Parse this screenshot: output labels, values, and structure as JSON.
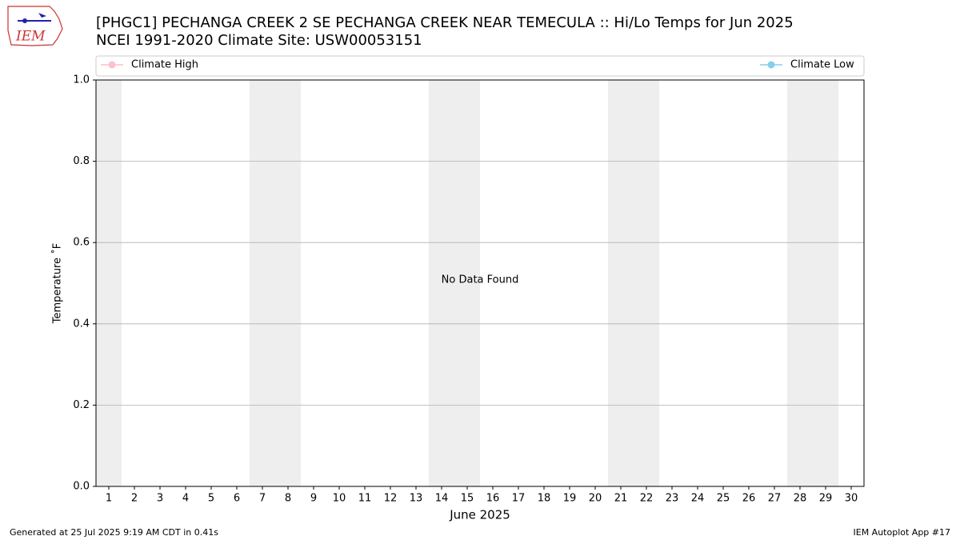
{
  "chart_data": {
    "type": "line",
    "title": "[PHGC1] PECHANGA CREEK 2 SE PECHANGA CREEK NEAR TEMECULA :: Hi/Lo Temps for Jun 2025",
    "subtitle": "NCEI 1991-2020 Climate Site: USW00053151",
    "x_label": "June 2025",
    "y_label": "Temperature ˚F",
    "annotation": "No Data Found",
    "x": [
      1,
      2,
      3,
      4,
      5,
      6,
      7,
      8,
      9,
      10,
      11,
      12,
      13,
      14,
      15,
      16,
      17,
      18,
      19,
      20,
      21,
      22,
      23,
      24,
      25,
      26,
      27,
      28,
      29,
      30
    ],
    "xlim": [
      0.5,
      30.5
    ],
    "xticks": [
      1,
      2,
      3,
      4,
      5,
      6,
      7,
      8,
      9,
      10,
      11,
      12,
      13,
      14,
      15,
      16,
      17,
      18,
      19,
      20,
      21,
      22,
      23,
      24,
      25,
      26,
      27,
      28,
      29,
      30
    ],
    "ylim": [
      0,
      1
    ],
    "yticks": [
      {
        "value": 0,
        "label": "0.0"
      },
      0.2,
      0.4,
      0.6,
      0.8,
      {
        "value": 1,
        "label": "1.0"
      }
    ],
    "grid": true,
    "weekends": [
      1,
      7,
      8,
      14,
      15,
      21,
      22,
      28,
      29
    ],
    "series": [
      {
        "name": "Climate High",
        "color": "#ffc0cb",
        "values": [
          null,
          null,
          null,
          null,
          null,
          null,
          null,
          null,
          null,
          null,
          null,
          null,
          null,
          null,
          null,
          null,
          null,
          null,
          null,
          null,
          null,
          null,
          null,
          null,
          null,
          null,
          null,
          null,
          null,
          null
        ]
      },
      {
        "name": "Climate Low",
        "color": "#87ceeb",
        "values": [
          null,
          null,
          null,
          null,
          null,
          null,
          null,
          null,
          null,
          null,
          null,
          null,
          null,
          null,
          null,
          null,
          null,
          null,
          null,
          null,
          null,
          null,
          null,
          null,
          null,
          null,
          null,
          null,
          null,
          null
        ]
      }
    ]
  },
  "logo": "IEM",
  "footer": {
    "left": "Generated at 25 Jul 2025 9:19 AM CDT in 0.41s",
    "right": "IEM Autoplot App #17"
  }
}
